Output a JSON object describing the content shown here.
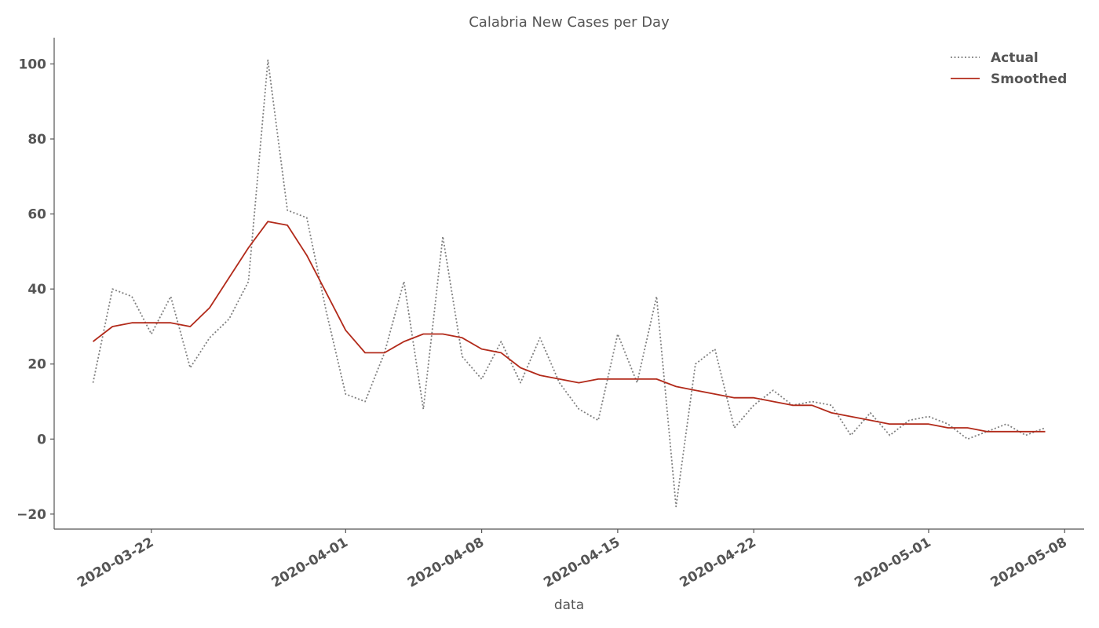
{
  "chart_data": {
    "type": "line",
    "title": "Calabria New Cases per Day",
    "xlabel": "data",
    "ylabel": "",
    "ylim": [
      -24,
      107
    ],
    "xlim": [
      "2020-03-17",
      "2020-05-09"
    ],
    "y_ticks": [
      -20,
      0,
      20,
      40,
      60,
      80,
      100
    ],
    "x_ticks": [
      "2020-03-22",
      "2020-04-01",
      "2020-04-08",
      "2020-04-15",
      "2020-04-22",
      "2020-05-01",
      "2020-05-08"
    ],
    "grid": false,
    "legend_position": "top-right",
    "x": [
      "2020-03-19",
      "2020-03-20",
      "2020-03-21",
      "2020-03-22",
      "2020-03-23",
      "2020-03-24",
      "2020-03-25",
      "2020-03-26",
      "2020-03-27",
      "2020-03-28",
      "2020-03-29",
      "2020-03-30",
      "2020-03-31",
      "2020-04-01",
      "2020-04-02",
      "2020-04-03",
      "2020-04-04",
      "2020-04-05",
      "2020-04-06",
      "2020-04-07",
      "2020-04-08",
      "2020-04-09",
      "2020-04-10",
      "2020-04-11",
      "2020-04-12",
      "2020-04-13",
      "2020-04-14",
      "2020-04-15",
      "2020-04-16",
      "2020-04-17",
      "2020-04-18",
      "2020-04-19",
      "2020-04-20",
      "2020-04-21",
      "2020-04-22",
      "2020-04-23",
      "2020-04-24",
      "2020-04-25",
      "2020-04-26",
      "2020-04-27",
      "2020-04-28",
      "2020-04-29",
      "2020-04-30",
      "2020-05-01",
      "2020-05-02",
      "2020-05-03",
      "2020-05-04",
      "2020-05-05",
      "2020-05-06",
      "2020-05-07"
    ],
    "series": [
      {
        "name": "Actual",
        "color": "#808080",
        "style": "dotted",
        "values": [
          15,
          40,
          38,
          28,
          38,
          19,
          27,
          32,
          42,
          101,
          61,
          59,
          34,
          12,
          10,
          23,
          42,
          8,
          54,
          22,
          16,
          26,
          15,
          27,
          15,
          8,
          5,
          28,
          15,
          38,
          -18,
          20,
          24,
          3,
          9,
          13,
          9,
          10,
          9,
          1,
          7,
          1,
          5,
          6,
          4,
          0,
          2,
          4,
          1,
          3
        ]
      },
      {
        "name": "Smoothed",
        "color": "#b22a1a",
        "style": "solid",
        "values": [
          26,
          30,
          31,
          31,
          31,
          30,
          35,
          43,
          51,
          58,
          57,
          49,
          39,
          29,
          23,
          23,
          26,
          28,
          28,
          27,
          24,
          23,
          19,
          17,
          16,
          15,
          16,
          16,
          16,
          16,
          14,
          13,
          12,
          11,
          11,
          10,
          9,
          9,
          7,
          6,
          5,
          4,
          4,
          4,
          3,
          3,
          2,
          2,
          2,
          2
        ]
      }
    ]
  }
}
